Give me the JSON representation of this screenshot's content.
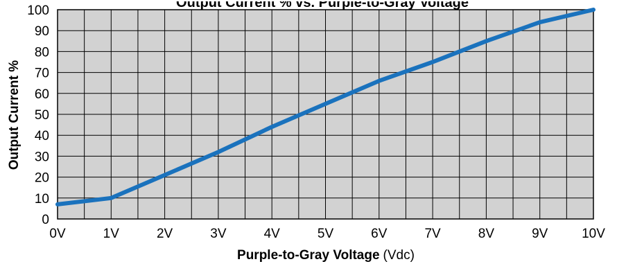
{
  "chart_data": {
    "type": "line",
    "title": "Output Current % vs. Purple-to-Gray Voltage",
    "xlabel": "Purple-to-Gray Voltage",
    "xlabel_unit": "(Vdc)",
    "ylabel": "Output Current %",
    "x_categories": [
      "0V",
      "1V",
      "2V",
      "3V",
      "4V",
      "5V",
      "6V",
      "7V",
      "8V",
      "9V",
      "10V"
    ],
    "y_ticks": [
      "0",
      "10",
      "20",
      "30",
      "40",
      "50",
      "60",
      "70",
      "80",
      "90",
      "100"
    ],
    "xlim": [
      0,
      10
    ],
    "ylim": [
      0,
      100
    ],
    "grid": true,
    "legend": "none",
    "series": [
      {
        "x": [
          0,
          1,
          2,
          3,
          4,
          5,
          6,
          7,
          8,
          9,
          10
        ],
        "y": [
          7,
          10,
          21,
          32,
          44,
          55,
          66,
          75,
          85,
          94,
          100
        ]
      }
    ],
    "colors": {
      "line": "#1a72bd",
      "plot_background": "#d2d2d2",
      "grid": "#000000"
    }
  }
}
